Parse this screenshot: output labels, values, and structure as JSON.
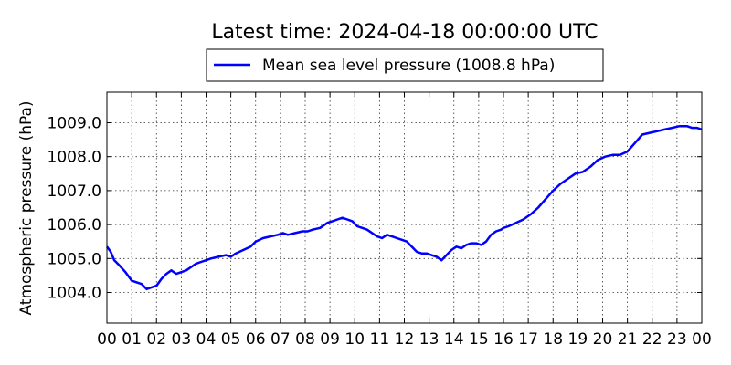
{
  "chart_data": {
    "type": "line",
    "title": "Latest time: 2024-04-18 00:00:00 UTC",
    "ylabel": "Atmospheric pressure (hPa)",
    "xlabel": "",
    "x_tick_labels": [
      "00",
      "01",
      "02",
      "03",
      "04",
      "05",
      "06",
      "07",
      "08",
      "09",
      "10",
      "11",
      "12",
      "13",
      "14",
      "15",
      "16",
      "17",
      "18",
      "19",
      "20",
      "21",
      "22",
      "23",
      "00"
    ],
    "y_tick_values": [
      1004.0,
      1005.0,
      1006.0,
      1007.0,
      1008.0,
      1009.0
    ],
    "y_tick_labels": [
      "1004.0",
      "1005.0",
      "1006.0",
      "1007.0",
      "1008.0",
      "1009.0"
    ],
    "xlim": [
      0,
      24
    ],
    "ylim": [
      1003.1,
      1009.9
    ],
    "grid": true,
    "legend_position": "top-center",
    "series": [
      {
        "name": "Mean sea level pressure (1008.8 hPa)",
        "color": "#0000ff",
        "x": [
          0,
          0.15,
          0.3,
          0.5,
          0.75,
          1.0,
          1.2,
          1.4,
          1.6,
          1.8,
          2.0,
          2.2,
          2.4,
          2.6,
          2.8,
          3.0,
          3.2,
          3.4,
          3.6,
          3.8,
          4.0,
          4.2,
          4.5,
          4.8,
          5.0,
          5.2,
          5.5,
          5.8,
          6.0,
          6.3,
          6.6,
          6.9,
          7.1,
          7.3,
          7.6,
          7.9,
          8.1,
          8.3,
          8.6,
          8.9,
          9.1,
          9.3,
          9.5,
          9.7,
          9.9,
          10.1,
          10.3,
          10.5,
          10.7,
          10.9,
          11.1,
          11.3,
          11.5,
          11.7,
          11.9,
          12.1,
          12.3,
          12.5,
          12.7,
          12.9,
          13.1,
          13.3,
          13.5,
          13.7,
          13.9,
          14.1,
          14.3,
          14.5,
          14.7,
          14.9,
          15.1,
          15.3,
          15.5,
          15.7,
          15.9,
          16.0,
          16.2,
          16.5,
          16.8,
          17.1,
          17.4,
          17.7,
          18.0,
          18.3,
          18.6,
          18.9,
          19.2,
          19.5,
          19.8,
          20.1,
          20.4,
          20.7,
          21.0,
          21.3,
          21.6,
          21.9,
          22.2,
          22.5,
          22.8,
          23.1,
          23.4,
          23.6,
          23.8,
          24.0
        ],
        "y": [
          1005.35,
          1005.2,
          1004.95,
          1004.8,
          1004.6,
          1004.35,
          1004.3,
          1004.25,
          1004.1,
          1004.15,
          1004.2,
          1004.4,
          1004.55,
          1004.65,
          1004.55,
          1004.6,
          1004.65,
          1004.75,
          1004.85,
          1004.9,
          1004.95,
          1005.0,
          1005.05,
          1005.1,
          1005.05,
          1005.15,
          1005.25,
          1005.35,
          1005.5,
          1005.6,
          1005.65,
          1005.7,
          1005.75,
          1005.7,
          1005.75,
          1005.8,
          1005.8,
          1005.85,
          1005.9,
          1006.05,
          1006.1,
          1006.15,
          1006.2,
          1006.15,
          1006.1,
          1005.95,
          1005.9,
          1005.85,
          1005.75,
          1005.65,
          1005.6,
          1005.7,
          1005.65,
          1005.6,
          1005.55,
          1005.5,
          1005.35,
          1005.2,
          1005.15,
          1005.15,
          1005.1,
          1005.05,
          1004.95,
          1005.1,
          1005.25,
          1005.35,
          1005.3,
          1005.4,
          1005.45,
          1005.45,
          1005.4,
          1005.5,
          1005.7,
          1005.8,
          1005.85,
          1005.9,
          1005.95,
          1006.05,
          1006.15,
          1006.3,
          1006.5,
          1006.75,
          1007.0,
          1007.2,
          1007.35,
          1007.5,
          1007.55,
          1007.7,
          1007.9,
          1008.0,
          1008.05,
          1008.05,
          1008.15,
          1008.4,
          1008.65,
          1008.7,
          1008.75,
          1008.8,
          1008.85,
          1008.9,
          1008.9,
          1008.85,
          1008.85,
          1008.8
        ]
      }
    ]
  }
}
